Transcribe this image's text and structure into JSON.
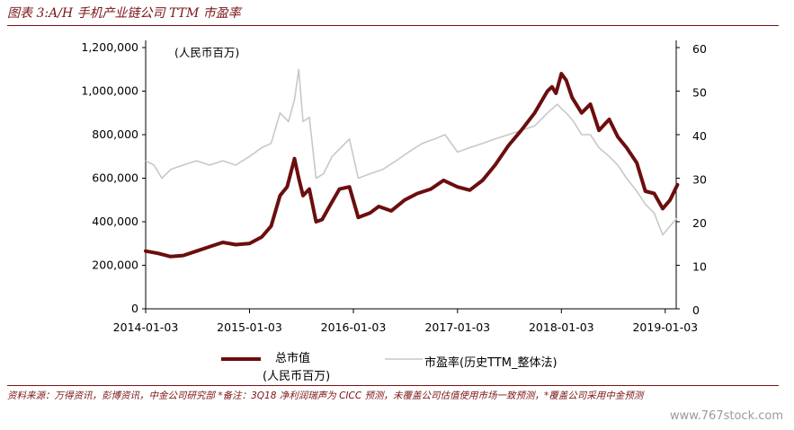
{
  "header": {
    "title": "图表 3:A/H 手机产业链公司 TTM 市盈率"
  },
  "footer": {
    "source_note": "资料来源：万得资讯，彭博资讯，中金公司研究部 *备注：3Q18 净利润瑞声为 CICC 预测，未覆盖公司估值使用市场一致预测，*覆盖公司采用中金预测"
  },
  "watermark": "www.767stock.com",
  "colors": {
    "market_cap": "#6b0e0e",
    "pe": "#c8c8c4",
    "accent": "#7a1416"
  },
  "chart_data": {
    "type": "line",
    "unit_label": "(人民币百万)",
    "x_tick_labels": [
      "2014-01-03",
      "2015-01-03",
      "2016-01-03",
      "2017-01-03",
      "2018-01-03",
      "2019-01-03"
    ],
    "y_left": {
      "ylim": [
        0,
        1200000
      ],
      "ticks": [
        "0",
        "200,000",
        "400,000",
        "600,000",
        "800,000",
        "1,000,000",
        "1,200,000"
      ]
    },
    "y_right": {
      "ylim": [
        0,
        60
      ],
      "ticks": [
        "0",
        "10",
        "20",
        "30",
        "40",
        "50",
        "60"
      ]
    },
    "series": [
      {
        "name": "总市值",
        "name_line2": "(人民币百万)",
        "axis": "left",
        "points": [
          [
            "2014-01-03",
            265000
          ],
          [
            "2014-02-15",
            255000
          ],
          [
            "2014-04-01",
            240000
          ],
          [
            "2014-05-15",
            245000
          ],
          [
            "2014-07-01",
            265000
          ],
          [
            "2014-08-15",
            285000
          ],
          [
            "2014-10-01",
            305000
          ],
          [
            "2014-11-15",
            295000
          ],
          [
            "2015-01-03",
            300000
          ],
          [
            "2015-02-15",
            330000
          ],
          [
            "2015-03-20",
            380000
          ],
          [
            "2015-04-20",
            520000
          ],
          [
            "2015-05-15",
            560000
          ],
          [
            "2015-06-10",
            690000
          ],
          [
            "2015-06-25",
            600000
          ],
          [
            "2015-07-10",
            520000
          ],
          [
            "2015-08-01",
            550000
          ],
          [
            "2015-08-25",
            400000
          ],
          [
            "2015-09-15",
            410000
          ],
          [
            "2015-10-15",
            480000
          ],
          [
            "2015-11-15",
            550000
          ],
          [
            "2015-12-20",
            560000
          ],
          [
            "2016-01-20",
            420000
          ],
          [
            "2016-03-01",
            440000
          ],
          [
            "2016-04-01",
            470000
          ],
          [
            "2016-05-15",
            450000
          ],
          [
            "2016-07-01",
            500000
          ],
          [
            "2016-08-15",
            530000
          ],
          [
            "2016-10-01",
            550000
          ],
          [
            "2016-11-15",
            590000
          ],
          [
            "2017-01-03",
            560000
          ],
          [
            "2017-02-15",
            545000
          ],
          [
            "2017-04-01",
            590000
          ],
          [
            "2017-05-15",
            660000
          ],
          [
            "2017-07-01",
            750000
          ],
          [
            "2017-08-15",
            820000
          ],
          [
            "2017-10-01",
            900000
          ],
          [
            "2017-11-15",
            1000000
          ],
          [
            "2017-12-01",
            1020000
          ],
          [
            "2017-12-15",
            990000
          ],
          [
            "2018-01-03",
            1080000
          ],
          [
            "2018-01-20",
            1050000
          ],
          [
            "2018-02-10",
            970000
          ],
          [
            "2018-03-15",
            900000
          ],
          [
            "2018-04-15",
            940000
          ],
          [
            "2018-05-15",
            820000
          ],
          [
            "2018-06-20",
            870000
          ],
          [
            "2018-07-20",
            790000
          ],
          [
            "2018-08-20",
            740000
          ],
          [
            "2018-09-25",
            670000
          ],
          [
            "2018-10-25",
            540000
          ],
          [
            "2018-11-25",
            530000
          ],
          [
            "2018-12-25",
            460000
          ],
          [
            "2019-01-20",
            500000
          ],
          [
            "2019-02-15",
            570000
          ]
        ]
      },
      {
        "name": "市盈率(历史TTM_整体法)",
        "axis": "right",
        "points": [
          [
            "2014-01-03",
            34
          ],
          [
            "2014-02-01",
            33
          ],
          [
            "2014-03-01",
            30
          ],
          [
            "2014-04-01",
            32
          ],
          [
            "2014-05-15",
            33
          ],
          [
            "2014-07-01",
            34
          ],
          [
            "2014-08-15",
            33
          ],
          [
            "2014-10-01",
            34
          ],
          [
            "2014-11-15",
            33
          ],
          [
            "2015-01-03",
            35
          ],
          [
            "2015-02-15",
            37
          ],
          [
            "2015-03-20",
            38
          ],
          [
            "2015-04-20",
            45
          ],
          [
            "2015-05-20",
            43
          ],
          [
            "2015-06-10",
            48
          ],
          [
            "2015-06-25",
            55
          ],
          [
            "2015-07-10",
            43
          ],
          [
            "2015-08-01",
            44
          ],
          [
            "2015-08-25",
            30
          ],
          [
            "2015-09-20",
            31
          ],
          [
            "2015-10-20",
            35
          ],
          [
            "2015-11-20",
            37
          ],
          [
            "2015-12-20",
            39
          ],
          [
            "2016-01-20",
            30
          ],
          [
            "2016-03-01",
            31
          ],
          [
            "2016-04-15",
            32
          ],
          [
            "2016-06-01",
            34
          ],
          [
            "2016-07-15",
            36
          ],
          [
            "2016-09-01",
            38
          ],
          [
            "2016-10-15",
            39
          ],
          [
            "2016-11-20",
            40
          ],
          [
            "2017-01-03",
            36
          ],
          [
            "2017-02-15",
            37
          ],
          [
            "2017-04-01",
            38
          ],
          [
            "2017-05-15",
            39
          ],
          [
            "2017-07-01",
            40
          ],
          [
            "2017-08-15",
            41
          ],
          [
            "2017-10-01",
            42
          ],
          [
            "2017-11-15",
            45
          ],
          [
            "2017-12-20",
            47
          ],
          [
            "2018-01-03",
            46
          ],
          [
            "2018-01-20",
            45
          ],
          [
            "2018-02-15",
            43
          ],
          [
            "2018-03-15",
            40
          ],
          [
            "2018-04-15",
            40
          ],
          [
            "2018-05-15",
            37
          ],
          [
            "2018-06-20",
            35
          ],
          [
            "2018-07-20",
            33
          ],
          [
            "2018-08-20",
            30
          ],
          [
            "2018-09-25",
            27
          ],
          [
            "2018-10-25",
            24
          ],
          [
            "2018-11-25",
            22
          ],
          [
            "2018-12-25",
            17
          ],
          [
            "2019-01-20",
            19
          ],
          [
            "2019-02-15",
            21
          ]
        ]
      }
    ]
  }
}
